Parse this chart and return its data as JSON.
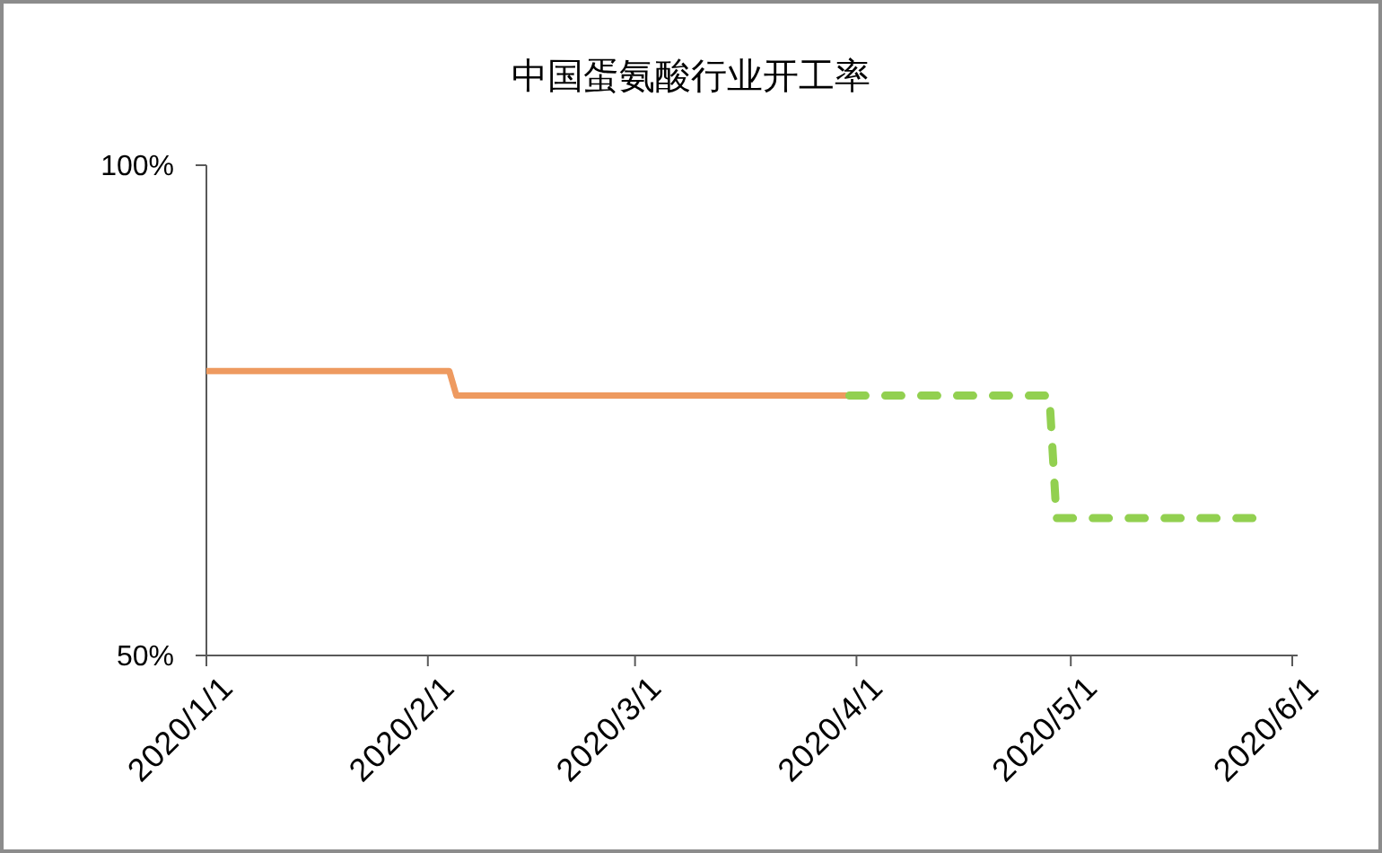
{
  "chart_data": {
    "type": "line",
    "title": "中国蛋氨酸行业开工率",
    "xlim": [
      "2020-01-01",
      "2020-06-01"
    ],
    "xticks": [
      {
        "value": "2020-01-01",
        "label": "2020/1/1"
      },
      {
        "value": "2020-02-01",
        "label": "2020/2/1"
      },
      {
        "value": "2020-03-01",
        "label": "2020/3/1"
      },
      {
        "value": "2020-04-01",
        "label": "2020/4/1"
      },
      {
        "value": "2020-05-01",
        "label": "2020/5/1"
      },
      {
        "value": "2020-06-01",
        "label": "2020/6/1"
      }
    ],
    "ylim": [
      50,
      100
    ],
    "yticks": [
      {
        "value": 50,
        "label": "50%"
      },
      {
        "value": 100,
        "label": "100%"
      }
    ],
    "series": [
      {
        "color": "#ee9a60",
        "line_style": "solid",
        "x": [
          "2020-01-01",
          "2020-02-04",
          "2020-02-05",
          "2020-03-31"
        ],
        "values": [
          79,
          79,
          76.5,
          76.5
        ]
      },
      {
        "color": "#92d050",
        "line_style": "dashed",
        "x": [
          "2020-03-31",
          "2020-04-28",
          "2020-04-29",
          "2020-05-28"
        ],
        "values": [
          76.5,
          76.5,
          64,
          64
        ]
      }
    ]
  }
}
